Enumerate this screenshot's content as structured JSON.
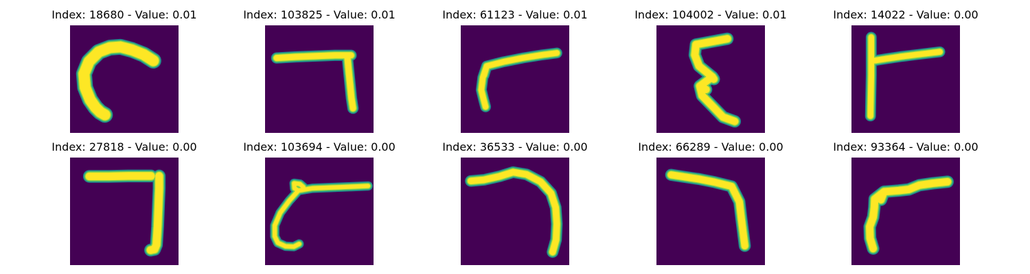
{
  "colors": {
    "background": "#440154",
    "stroke_edge": "#21918c",
    "stroke_mid": "#7ad151",
    "stroke_core": "#fde725"
  },
  "panels": [
    {
      "title": "Index: 18680 - Value: 0.01",
      "shape": "curve-hook"
    },
    {
      "title": "Index: 103825 - Value: 0.01",
      "shape": "seven-bar"
    },
    {
      "title": "Index: 61123 - Value: 0.01",
      "shape": "seven-slant"
    },
    {
      "title": "Index: 104002 - Value: 0.01",
      "shape": "zigzag"
    },
    {
      "title": "Index: 14022 - Value: 0.00",
      "shape": "t-cross"
    },
    {
      "title": "Index: 27818 - Value: 0.00",
      "shape": "seven-square"
    },
    {
      "title": "Index: 103694 - Value: 0.00",
      "shape": "thin-curl"
    },
    {
      "title": "Index: 36533 - Value: 0.00",
      "shape": "arch-right"
    },
    {
      "title": "Index: 66289 - Value: 0.00",
      "shape": "seven-drop"
    },
    {
      "title": "Index: 93364 - Value: 0.00",
      "shape": "seven-wobble"
    }
  ]
}
